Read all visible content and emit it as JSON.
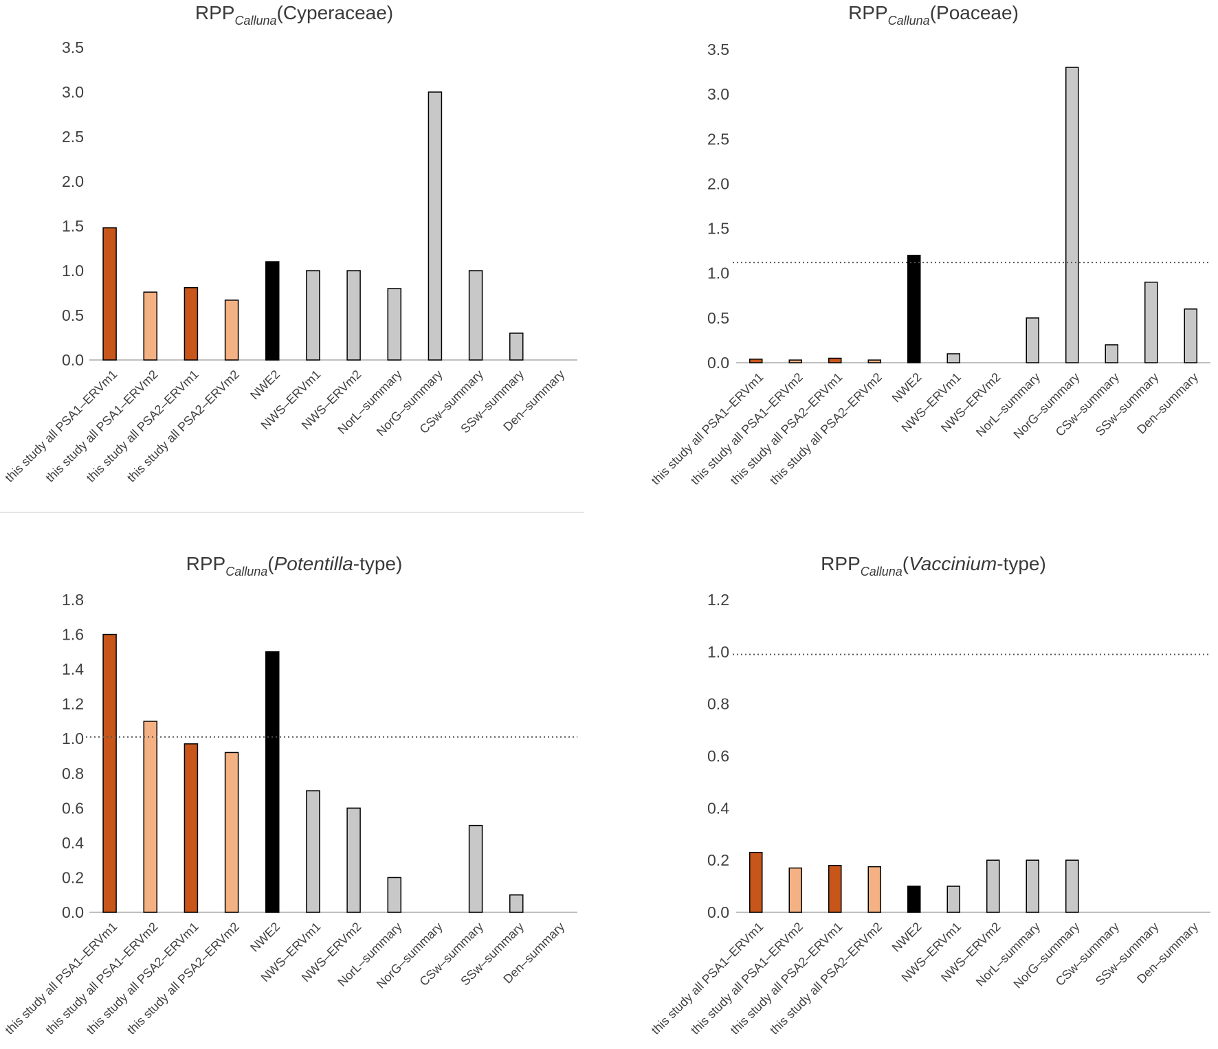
{
  "colors": {
    "dark_orange": "#c8561a",
    "light_orange": "#f4b183",
    "black": "#000000",
    "grey": "#c8c8c8",
    "axis": "#bfbfbf"
  },
  "chart_data": [
    {
      "type": "bar",
      "title_main": "RPP",
      "title_sub": "Calluna",
      "title_paren_open": "(",
      "title_taxon": "Cyperaceae",
      "title_taxon_italic": false,
      "title_suffix": "",
      "title_paren_close": ")",
      "categories": [
        "this study all PSA1–ERVm1",
        "this study all PSA1–ERVm2",
        "this study all PSA2–ERVm1",
        "this study all PSA2–ERVm2",
        "NWE2",
        "NWS–ERVm1",
        "NWS–ERVm2",
        "NorL–summary",
        "NorG–summary",
        "CSw–summary",
        "SSw–summary",
        "Den–summary"
      ],
      "values": [
        1.48,
        0.76,
        0.81,
        0.67,
        1.1,
        1.0,
        1.0,
        0.8,
        3.0,
        1.0,
        0.3,
        null
      ],
      "bar_colors": [
        "dark_orange",
        "light_orange",
        "dark_orange",
        "light_orange",
        "black",
        "grey",
        "grey",
        "grey",
        "grey",
        "grey",
        "grey",
        "grey"
      ],
      "ylim": [
        0,
        3.5
      ],
      "yticks": [
        "0.0",
        "0.5",
        "1.0",
        "1.5",
        "2.0",
        "2.5",
        "3.0",
        "3.5"
      ],
      "reference_line": null,
      "xlabel": "",
      "ylabel": "",
      "grid": false
    },
    {
      "type": "bar",
      "title_main": "RPP",
      "title_sub": "Calluna",
      "title_paren_open": "(",
      "title_taxon": "Poaceae",
      "title_taxon_italic": false,
      "title_suffix": "",
      "title_paren_close": ")",
      "categories": [
        "this study all PSA1–ERVm1",
        "this study all PSA1–ERVm2",
        "this study all PSA2–ERVm1",
        "this study all PSA2–ERVm2",
        "NWE2",
        "NWS–ERVm1",
        "NWS–ERVm2",
        "NorL–summary",
        "NorG–summary",
        "CSw–summary",
        "SSw–summary",
        "Den–summary"
      ],
      "values": [
        0.04,
        0.03,
        0.05,
        0.03,
        1.2,
        0.1,
        null,
        0.5,
        3.3,
        0.2,
        0.9,
        0.6
      ],
      "bar_colors": [
        "dark_orange",
        "light_orange",
        "dark_orange",
        "light_orange",
        "black",
        "grey",
        "grey",
        "grey",
        "grey",
        "grey",
        "grey",
        "grey"
      ],
      "ylim": [
        0,
        3.5
      ],
      "yticks": [
        "0.0",
        "0.5",
        "1.0",
        "1.5",
        "2.0",
        "2.5",
        "3.0",
        "3.5"
      ],
      "reference_line": 1.12,
      "xlabel": "",
      "ylabel": "",
      "grid": false
    },
    {
      "type": "bar",
      "title_main": "RPP",
      "title_sub": "Calluna",
      "title_paren_open": "(",
      "title_taxon": "Potentilla",
      "title_taxon_italic": true,
      "title_suffix": "-type",
      "title_paren_close": ")",
      "categories": [
        "this study all PSA1–ERVm1",
        "this study all PSA1–ERVm2",
        "this study all PSA2–ERVm1",
        "this study all PSA2–ERVm2",
        "NWE2",
        "NWS–ERVm1",
        "NWS–ERVm2",
        "NorL–summary",
        "NorG–summary",
        "CSw–summary",
        "SSw–summary",
        "Den–summary"
      ],
      "values": [
        1.6,
        1.1,
        0.97,
        0.92,
        1.5,
        0.7,
        0.6,
        0.2,
        null,
        0.5,
        0.1,
        null
      ],
      "bar_colors": [
        "dark_orange",
        "light_orange",
        "dark_orange",
        "light_orange",
        "black",
        "grey",
        "grey",
        "grey",
        "grey",
        "grey",
        "grey",
        "grey"
      ],
      "ylim": [
        0,
        1.8
      ],
      "yticks": [
        "0.0",
        "0.2",
        "0.4",
        "0.6",
        "0.8",
        "1.0",
        "1.2",
        "1.4",
        "1.6",
        "1.8"
      ],
      "reference_line": 1.01,
      "xlabel": "",
      "ylabel": "",
      "grid": false
    },
    {
      "type": "bar",
      "title_main": "RPP",
      "title_sub": "Calluna",
      "title_paren_open": "(",
      "title_taxon": "Vaccinium",
      "title_taxon_italic": true,
      "title_suffix": "-type",
      "title_paren_close": ")",
      "categories": [
        "this study all PSA1–ERVm1",
        "this study all PSA1–ERVm2",
        "this study all PSA2–ERVm1",
        "this study all PSA2–ERVm2",
        "NWE2",
        "NWS–ERVm1",
        "NWS–ERVm2",
        "NorL–summary",
        "NorG–summary",
        "CSw–summary",
        "SSw–summary",
        "Den–summary"
      ],
      "values": [
        0.23,
        0.17,
        0.18,
        0.175,
        0.1,
        0.1,
        0.2,
        0.2,
        0.2,
        null,
        null,
        null
      ],
      "bar_colors": [
        "dark_orange",
        "light_orange",
        "dark_orange",
        "light_orange",
        "black",
        "grey",
        "grey",
        "grey",
        "grey",
        "grey",
        "grey",
        "grey"
      ],
      "ylim": [
        0,
        1.2
      ],
      "yticks": [
        "0.0",
        "0.2",
        "0.4",
        "0.6",
        "0.8",
        "1.0",
        "1.2"
      ],
      "reference_line": 0.99,
      "xlabel": "",
      "ylabel": "",
      "grid": false
    }
  ]
}
